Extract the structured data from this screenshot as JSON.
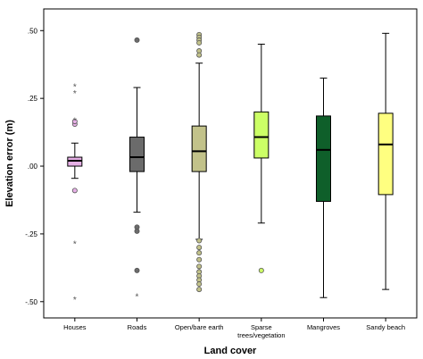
{
  "chart_data": {
    "type": "boxplot",
    "xlabel": "Land cover",
    "ylabel": "Elevation error (m)",
    "ylim": [
      -0.56,
      0.58
    ],
    "y_ticks": [
      ".50",
      ".25",
      ".00",
      "-.25",
      "-.50"
    ],
    "y_tick_values": [
      0.5,
      0.25,
      0.0,
      -0.25,
      -0.5
    ],
    "grid": false,
    "categories": [
      {
        "label": [
          "Houses"
        ],
        "color": "#e6b0e6",
        "q1": 0.0,
        "median": 0.02,
        "q3": 0.033,
        "whisker_low": -0.045,
        "whisker_high": 0.085,
        "outliers": [
          0.155,
          0.165,
          -0.09
        ],
        "extremes": [
          0.295,
          0.27,
          0.17,
          -0.285,
          -0.49
        ]
      },
      {
        "label": [
          "Roads"
        ],
        "color": "#6b6b6b",
        "q1": -0.02,
        "median": 0.033,
        "q3": 0.107,
        "whisker_low": -0.17,
        "whisker_high": 0.29,
        "outliers": [
          0.465,
          -0.225,
          -0.24,
          -0.385
        ],
        "extremes": [
          -0.48
        ]
      },
      {
        "label": [
          "Open/bare earth"
        ],
        "color": "#c2c28a",
        "q1": -0.02,
        "median": 0.055,
        "q3": 0.148,
        "whisker_low": -0.27,
        "whisker_high": 0.38,
        "outliers": [
          0.485,
          0.475,
          0.465,
          0.455,
          0.425,
          0.41,
          -0.275,
          -0.3,
          -0.32,
          -0.345,
          -0.37,
          -0.39,
          -0.405,
          -0.42,
          -0.435,
          -0.455
        ],
        "extremes": []
      },
      {
        "label": [
          "Sparse",
          "trees/vegetation"
        ],
        "color": "#ccff66",
        "q1": 0.03,
        "median": 0.107,
        "q3": 0.2,
        "whisker_low": -0.21,
        "whisker_high": 0.45,
        "outliers": [
          -0.385
        ],
        "extremes": []
      },
      {
        "label": [
          "Mangroves"
        ],
        "color": "#0f5f2a",
        "q1": -0.13,
        "median": 0.06,
        "q3": 0.185,
        "whisker_low": -0.485,
        "whisker_high": 0.325,
        "outliers": [],
        "extremes": []
      },
      {
        "label": [
          "Sandy beach"
        ],
        "color": "#ffff80",
        "q1": -0.105,
        "median": 0.08,
        "q3": 0.195,
        "whisker_low": -0.455,
        "whisker_high": 0.49,
        "outliers": [],
        "extremes": []
      }
    ]
  }
}
